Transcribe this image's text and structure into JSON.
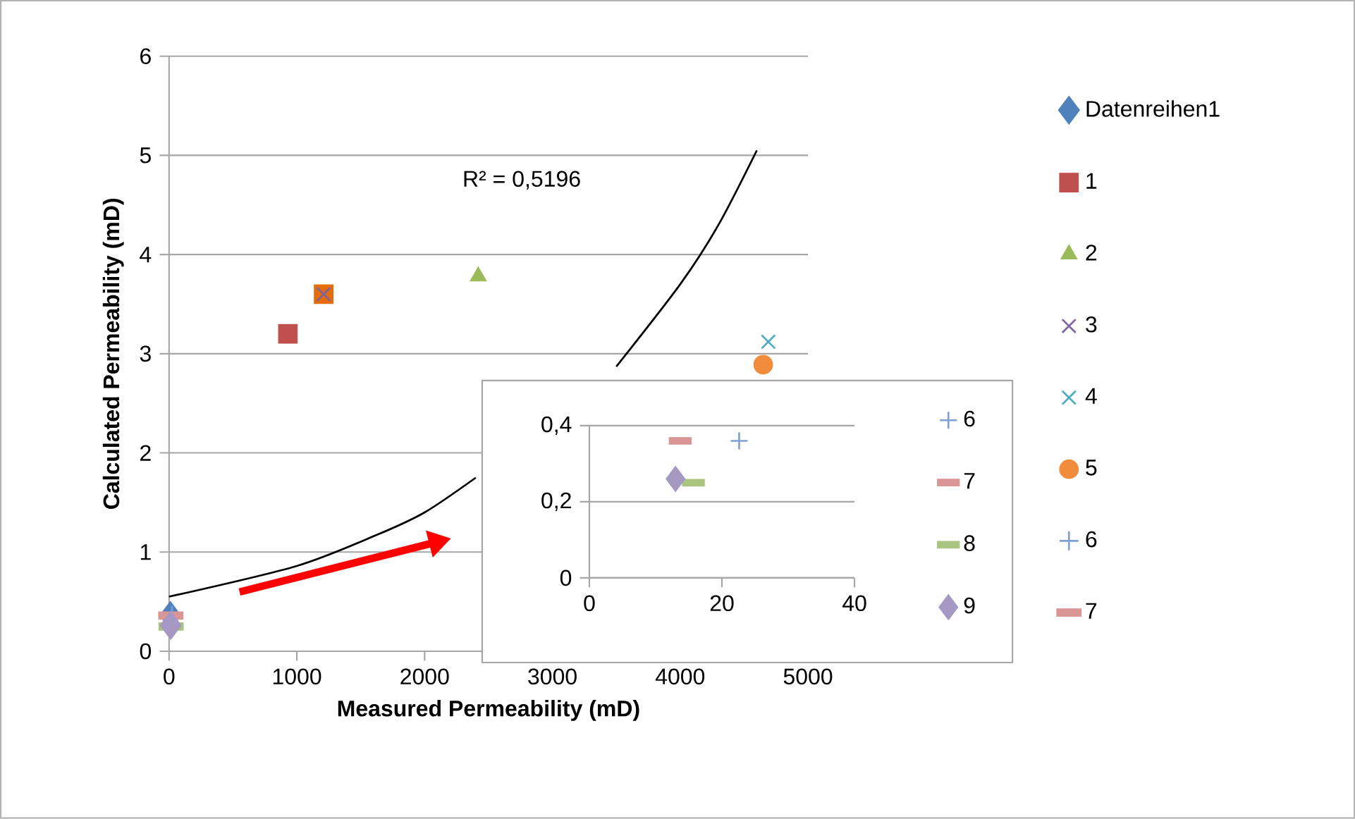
{
  "chart_data": [
    {
      "type": "scatter",
      "xlabel": "Measured Permeability (mD)",
      "ylabel": "Calculated Permeability (mD)",
      "xlim": [
        0,
        5000
      ],
      "ylim": [
        0,
        6
      ],
      "xticks": [
        0,
        1000,
        2000,
        3000,
        4000,
        5000
      ],
      "yticks": [
        0,
        1,
        2,
        3,
        4,
        5,
        6
      ],
      "grid": "y",
      "legend": "right",
      "annotations": [
        "R² = 0,5196"
      ],
      "series": [
        {
          "name": "Datenreihen1",
          "color": "#4f81bd",
          "marker": "diamond",
          "x": [
            10
          ],
          "values": [
            0.36
          ]
        },
        {
          "name": "1",
          "color": "#c0504d",
          "marker": "square",
          "x": [
            930
          ],
          "values": [
            3.2
          ]
        },
        {
          "name": "2",
          "color": "#9bbb59",
          "marker": "triangle",
          "x": [
            2420
          ],
          "values": [
            3.78
          ]
        },
        {
          "color": "#e46c0a",
          "marker": "square",
          "x": [
            1210
          ],
          "values": [
            3.6
          ]
        },
        {
          "name": "3",
          "color": "#8064a2",
          "marker": "cross",
          "x": [
            1210
          ],
          "values": [
            3.6
          ]
        },
        {
          "name": "4",
          "color": "#4bacc6",
          "marker": "cross",
          "x": [
            4690
          ],
          "values": [
            3.12
          ]
        },
        {
          "name": "5",
          "color": "#f08c3c",
          "marker": "circle",
          "x": [
            4650
          ],
          "values": [
            2.89
          ]
        },
        {
          "name": "6",
          "color": "#7ea1d4",
          "marker": "plus",
          "x": [
            22.6
          ],
          "values": [
            0.36
          ]
        },
        {
          "name": "7",
          "color": "#d99694",
          "x": [
            13.7
          ],
          "values": [
            0.36
          ]
        },
        {
          "color": "#a9c47f",
          "x": [
            15.7
          ],
          "values": [
            0.25
          ]
        },
        {
          "color": "#a599c4",
          "marker": "diamond",
          "x": [
            13
          ],
          "values": [
            0.26
          ]
        },
        {
          "type": "line",
          "color": "#000000",
          "marker": "none",
          "x": [
            0,
            1000,
            1620,
            2000,
            2400,
            3000,
            3500,
            4000,
            4300,
            4600
          ],
          "values": [
            0.55,
            0.86,
            1.17,
            1.4,
            1.75,
            null,
            2.87,
            3.7,
            4.3,
            5.05
          ]
        }
      ]
    },
    {
      "type": "scatter",
      "xlim": [
        0,
        40
      ],
      "ylim": [
        0,
        0.4
      ],
      "xticks": [
        0,
        20,
        40
      ],
      "yticks": [
        0,
        {
          "value": 0.2,
          "label": "0,2"
        },
        {
          "value": 0.4,
          "label": "0,4"
        }
      ],
      "grid": "y",
      "legend": "right",
      "series": [
        {
          "name": "6",
          "color": "#7ea1d4",
          "marker": "plus",
          "x": [
            22.6
          ],
          "values": [
            0.36
          ]
        },
        {
          "name": "7",
          "color": "#d99694",
          "x": [
            13.7
          ],
          "values": [
            0.36
          ]
        },
        {
          "name": "8",
          "color": "#a9c47f",
          "x": [
            15.7
          ],
          "values": [
            0.25
          ]
        },
        {
          "name": "9",
          "color": "#a599c4",
          "marker": "diamond",
          "x": [
            13
          ],
          "values": [
            0.26
          ]
        }
      ]
    }
  ]
}
